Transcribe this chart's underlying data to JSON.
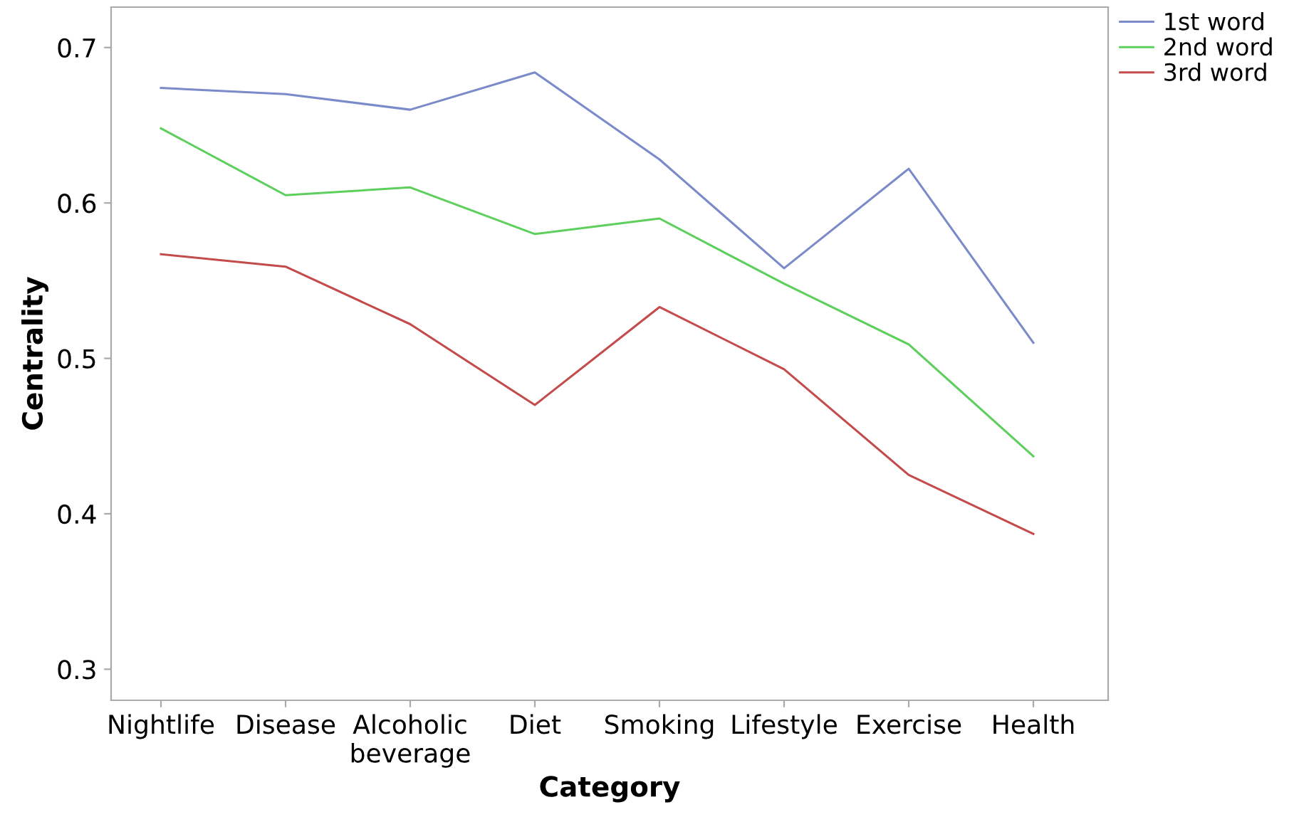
{
  "chart_data": {
    "type": "line",
    "xlabel": "Category",
    "ylabel": "Centrality",
    "categories": [
      "Nightlife",
      "Disease",
      "Alcoholic\nbeverage",
      "Diet",
      "Smoking",
      "Lifestyle",
      "Exercise",
      "Health"
    ],
    "series": [
      {
        "name": "1st word",
        "color": "#7b8ac9",
        "values": [
          0.674,
          0.67,
          0.66,
          0.684,
          0.628,
          0.558,
          0.622,
          0.51
        ]
      },
      {
        "name": "2nd word",
        "color": "#5ccf5c",
        "values": [
          0.648,
          0.605,
          0.61,
          0.58,
          0.59,
          0.548,
          0.509,
          0.437
        ]
      },
      {
        "name": "3rd word",
        "color": "#c44b4b",
        "values": [
          0.567,
          0.559,
          0.522,
          0.47,
          0.533,
          0.493,
          0.425,
          0.387
        ]
      }
    ],
    "ylim": [
      0.28,
      0.726
    ],
    "yticks": [
      {
        "value": 0.3,
        "label": "0.3"
      },
      {
        "value": 0.4,
        "label": "0.4"
      },
      {
        "value": 0.5,
        "label": "0.5"
      },
      {
        "value": 0.6,
        "label": "0.6"
      },
      {
        "value": 0.7,
        "label": "0.7"
      }
    ],
    "grid": false,
    "legend": "top right",
    "marker": "none",
    "line_style": "solid"
  }
}
